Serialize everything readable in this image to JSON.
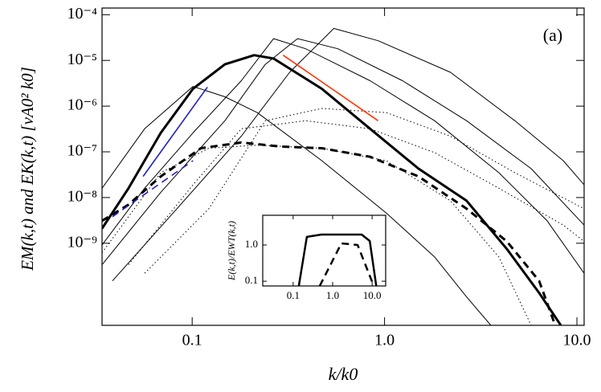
{
  "chart_data": [
    {
      "type": "line",
      "x_label": "k/k0",
      "y_label": "EM(k,t) and EK(k,t)   [vA0² k0]",
      "annotation": "(a)",
      "xscale": "log",
      "yscale": "log",
      "xlim": [
        0.034,
        10.9
      ],
      "ylim": [
        1.6e-11,
        0.00014
      ],
      "xticks": [
        0.1,
        {
          "value": 1,
          "label": "1.0"
        },
        {
          "value": 10,
          "label": "10.0"
        }
      ],
      "yticks": [
        {
          "value": 1e-09,
          "label": "10⁻⁹"
        },
        {
          "value": 1e-08,
          "label": "10⁻⁸"
        },
        {
          "value": 1e-07,
          "label": "10⁻⁷"
        },
        {
          "value": 1e-06,
          "label": "10⁻⁶"
        },
        {
          "value": 1e-05,
          "label": "10⁻⁵"
        },
        {
          "value": 0.0001,
          "label": "10⁻⁴"
        }
      ],
      "series": [
        {
          "color": "#000000",
          "width": 1,
          "dash": "solid",
          "x": [
            0.034,
            0.0566,
            0.101,
            0.148,
            0.218,
            0.472,
            1.02,
            1.82,
            2.67,
            3.57
          ],
          "values": [
            1.6e-08,
            3.2e-07,
            2.7e-06,
            1.6e-06,
            7.2e-07,
            6.4e-08,
            4.6e-09,
            5e-10,
            6.7e-11,
            1.6e-11
          ]
        },
        {
          "color": "#000000",
          "width": 1,
          "dash": "solid",
          "x": [
            0.034,
            0.0566,
            0.101,
            0.18,
            0.265,
            0.389,
            0.841,
            1.82,
            3.93,
            7.0,
            10.9
          ],
          "values": [
            9.2e-10,
            1.6e-08,
            2.6e-07,
            3.6e-06,
            3e-05,
            1.8e-05,
            3.6e-06,
            4.8e-07,
            3.5e-08,
            3.1e-09,
            2.2e-10
          ]
        },
        {
          "color": "#000000",
          "width": 1,
          "dash": "solid",
          "x": [
            0.034,
            0.0687,
            0.148,
            0.24,
            0.353,
            0.572,
            1.24,
            2.67,
            5.78,
            10.9
          ],
          "values": [
            3.4e-10,
            1.3e-08,
            4.8e-07,
            8.2e-06,
            3e-05,
            1.8e-05,
            3.6e-06,
            4.8e-07,
            4.3e-08,
            2.5e-09
          ]
        },
        {
          "color": "#000000",
          "width": 1,
          "dash": "solid",
          "x": [
            0.0385,
            0.0833,
            0.18,
            0.321,
            0.545,
            0.926,
            2.2,
            4.76,
            8.49,
            10.9
          ],
          "values": [
            1.5e-10,
            5.7e-09,
            2.2e-07,
            5.5e-06,
            5e-05,
            2.7e-05,
            5.5e-06,
            4.8e-07,
            6.4e-08,
            1.9e-08
          ]
        },
        {
          "color": "#000000",
          "width": 1,
          "dash": "dotted",
          "x": [
            0.034,
            0.0687,
            0.122,
            0.218,
            0.472,
            1.02,
            2.2,
            3.93,
            5.78
          ],
          "values": [
            6.2e-10,
            3.5e-08,
            1.2e-07,
            1.4e-07,
            1.2e-07,
            6.4e-08,
            8.5e-09,
            5e-10,
            1.6e-11
          ]
        },
        {
          "color": "#000000",
          "width": 1,
          "dash": "dotted",
          "x": [
            0.0467,
            0.101,
            0.18,
            0.389,
            0.841,
            1.82,
            3.93,
            8.49,
            10.9
          ],
          "values": [
            3.4e-10,
            1.9e-08,
            3.2e-07,
            4.8e-07,
            3.2e-07,
            9.6e-08,
            1.6e-08,
            2.5e-09,
            1.1e-09
          ]
        },
        {
          "color": "#000000",
          "width": 1,
          "dash": "dotted",
          "x": [
            0.0566,
            0.122,
            0.24,
            0.472,
            1.02,
            2.2,
            4.76,
            10.9
          ],
          "values": [
            2.2e-10,
            5.7e-09,
            4.8e-07,
            8.9e-07,
            7.2e-07,
            2.2e-07,
            3.5e-08,
            5.7e-09
          ]
        },
        {
          "color": "#000000",
          "width": 3,
          "dash": "solid",
          "x": [
            0.034,
            0.0467,
            0.0687,
            0.101,
            0.148,
            0.21,
            0.265,
            0.472,
            0.841,
            1.5,
            2.67,
            4.32,
            6.36,
            8.25
          ],
          "values": [
            2.1e-09,
            1.6e-08,
            2.6e-07,
            2.4e-06,
            8.2e-06,
            1.3e-05,
            1.1e-05,
            2.4e-06,
            3.2e-07,
            4.3e-08,
            8.5e-09,
            7.5e-10,
            8.2e-11,
            1.6e-11
          ]
        },
        {
          "color": "#000000",
          "width": 3,
          "dash": "dashed",
          "x": [
            0.034,
            0.0467,
            0.0687,
            0.111,
            0.18,
            0.291,
            0.472,
            0.841,
            1.5,
            2.67,
            4.32,
            6.36,
            7.71
          ],
          "values": [
            3.1e-09,
            7e-09,
            2.9e-08,
            1.2e-07,
            1.6e-07,
            1.3e-07,
            1.2e-07,
            7.8e-08,
            2.9e-08,
            5.7e-09,
            1.1e-09,
            1.5e-10,
            1.6e-11
          ]
        },
        {
          "color": "#2222bb",
          "width": 1.6,
          "dash": "solid",
          "x": [
            0.0556,
            0.12
          ],
          "values": [
            2.9e-08,
            2.6e-06
          ]
        },
        {
          "color": "#2222bb",
          "width": 1.6,
          "dash": "dashed",
          "x": [
            0.0385,
            0.101
          ],
          "values": [
            3.8e-09,
            6.4e-08
          ]
        },
        {
          "color": "#ff3300",
          "width": 1.6,
          "dash": "solid",
          "x": [
            0.297,
            0.926
          ],
          "values": [
            1.3e-05,
            4.8e-07
          ]
        }
      ]
    },
    {
      "type": "line",
      "y_label": "E(k,t)/EWT(k,t)",
      "xscale": "log",
      "yscale": "log",
      "xlim": [
        0.017,
        22
      ],
      "ylim": [
        0.074,
        6.6
      ],
      "xticks": [
        0.1,
        {
          "value": 1,
          "label": "1.0"
        },
        {
          "value": 10,
          "label": "10.0"
        }
      ],
      "yticks": [
        0.1,
        {
          "value": 1,
          "label": "1.0"
        }
      ],
      "series": [
        {
          "color": "#000000",
          "width": 2.5,
          "dash": "solid",
          "x": [
            0.139,
            0.222,
            0.518,
            5.43,
            8.7,
            12.7
          ],
          "values": [
            0.074,
            1.67,
            1.94,
            1.94,
            1.29,
            0.074
          ]
        },
        {
          "color": "#000000",
          "width": 2.5,
          "dash": "dashed",
          "x": [
            0.471,
            1.67,
            4.3,
            11.0
          ],
          "values": [
            0.074,
            1.11,
            1.0,
            0.074
          ]
        }
      ]
    }
  ]
}
